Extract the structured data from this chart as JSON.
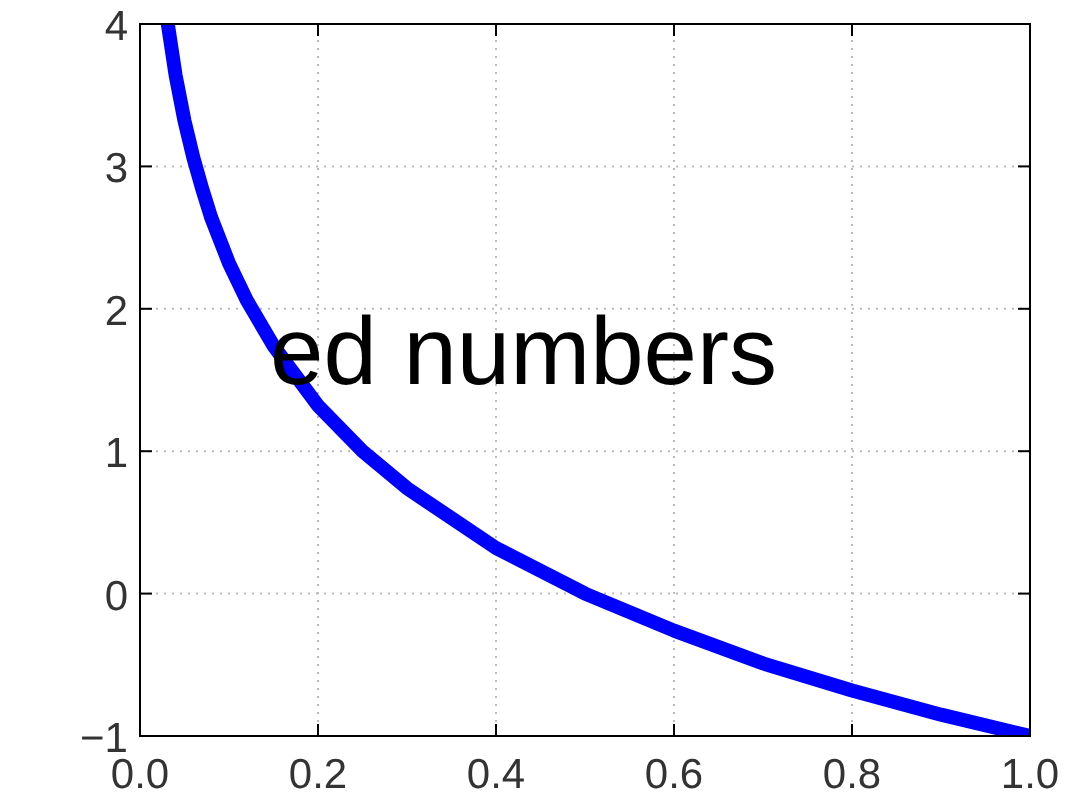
{
  "chart_data": {
    "type": "line",
    "annotations": [
      "ed numbers"
    ],
    "x": [
      0.03125,
      0.04,
      0.05,
      0.06,
      0.07,
      0.08,
      0.1,
      0.12,
      0.15,
      0.2,
      0.25,
      0.3,
      0.4,
      0.5,
      0.6,
      0.7,
      0.8,
      0.9,
      1.0
    ],
    "series": [
      {
        "color": "#0000ff",
        "values": [
          4.0,
          3.64,
          3.32,
          3.06,
          2.84,
          2.64,
          2.32,
          2.06,
          1.74,
          1.32,
          1.0,
          0.74,
          0.32,
          0.0,
          -0.26,
          -0.49,
          -0.68,
          -0.85,
          -1.0
        ]
      }
    ],
    "xlim": [
      0,
      1
    ],
    "ylim": [
      -1,
      4
    ],
    "xticks": [
      {
        "value": 0,
        "label": "0.0"
      },
      0.2,
      0.4,
      0.6,
      0.8,
      {
        "value": 1,
        "label": "1.0"
      }
    ],
    "yticks": [
      {
        "value": -1,
        "label": "−1"
      },
      0,
      1,
      2,
      3,
      4
    ],
    "grid": true,
    "marker": "none",
    "line_style": "solid"
  }
}
